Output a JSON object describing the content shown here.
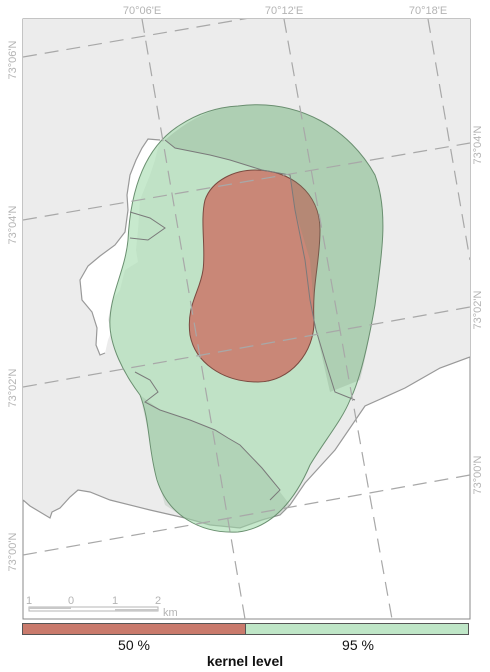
{
  "map": {
    "grid_labels": {
      "top": [
        "70°06'E",
        "70°12'E",
        "70°18'E"
      ],
      "left": [
        "73°06'N",
        "73°04'N",
        "73°02'N",
        "73°00'N"
      ],
      "right": [
        "73°04'N",
        "73°02'N",
        "73°00'N"
      ]
    },
    "scale_bar": {
      "ticks": [
        "1",
        "0",
        "1",
        "2"
      ],
      "unit": "km"
    },
    "colors": {
      "land": "#ececec",
      "coastline": "#999999",
      "water": "#ffffff",
      "kernel_50": "#c97a6c",
      "kernel_95": "#a4dcae",
      "grid": "#a8a8a8"
    }
  },
  "legend": {
    "title": "kernel level",
    "items": [
      {
        "label": "50 %",
        "color": "#c97a6c"
      },
      {
        "label": "95 %",
        "color": "#bfe6c7"
      }
    ]
  }
}
